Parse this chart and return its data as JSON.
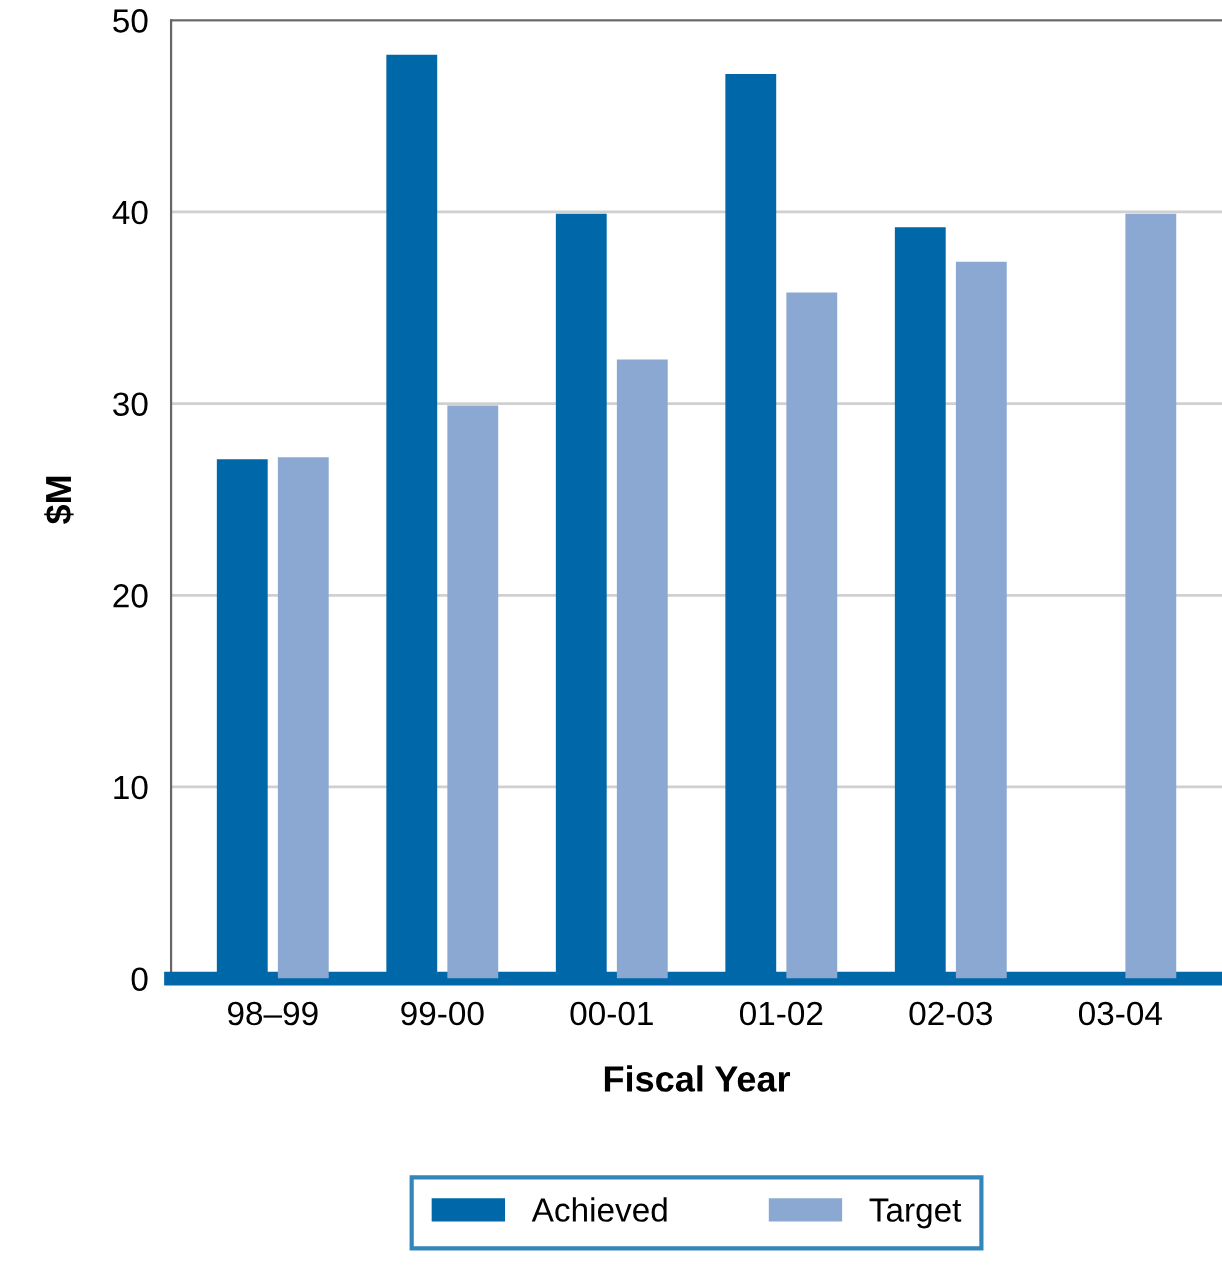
{
  "chart_data": {
    "type": "bar",
    "xlabel": "Fiscal Year",
    "ylabel": "$M",
    "categories": [
      "98–99",
      "99-00",
      "00-01",
      "01-02",
      "02-03",
      "03-04"
    ],
    "series": [
      {
        "name": "Achieved",
        "color": "#0068a8",
        "values": [
          27.1,
          48.2,
          39.9,
          47.2,
          39.2,
          null
        ]
      },
      {
        "name": "Target",
        "color": "#8aa8d2",
        "values": [
          27.2,
          29.9,
          32.3,
          35.8,
          37.4,
          39.9
        ]
      }
    ],
    "ylim": [
      0,
      50
    ],
    "yticks": [
      0,
      10,
      20,
      30,
      40,
      50
    ],
    "grid": "y",
    "legend": "bottom"
  }
}
